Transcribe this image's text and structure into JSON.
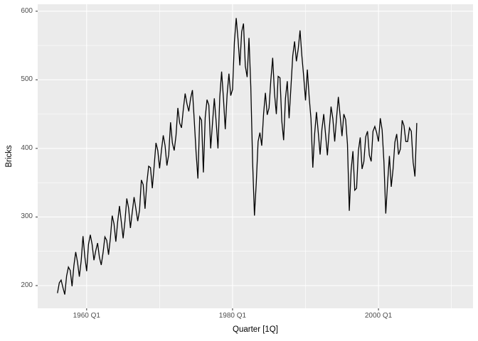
{
  "figure": {
    "x_axis_title": "Quarter [1Q]",
    "y_axis_title": "Bricks",
    "x_ticks": [
      {
        "label": "1960 Q1",
        "year": 1960
      },
      {
        "label": "1980 Q1",
        "year": 1980
      },
      {
        "label": "2000 Q1",
        "year": 2000
      }
    ],
    "x_minor_gridlines": [
      1970,
      1990,
      2010
    ],
    "y_ticks": [
      {
        "label": "200",
        "value": 200
      },
      {
        "label": "300",
        "value": 300
      },
      {
        "label": "400",
        "value": 400
      },
      {
        "label": "500",
        "value": 500
      },
      {
        "label": "600",
        "value": 600
      }
    ],
    "y_minor_gridlines": [
      250,
      350,
      450,
      550
    ],
    "colors": {
      "panel_background": "#EBEBEB",
      "grid_major": "#FFFFFF",
      "grid_minor": "#FFFFFF",
      "line": "#000000",
      "tick_text": "#4D4D4D",
      "axis_title_text": "#000000",
      "tick_mark": "#333333",
      "outer_background": "#FFFFFF"
    }
  },
  "chart_data": {
    "type": "line",
    "title": "",
    "xlabel": "Quarter [1Q]",
    "ylabel": "Bricks",
    "x_start": 1956.0,
    "x_step": 0.25,
    "x_end": 2005.25,
    "x_domain": [
      1953.29,
      2012.96
    ],
    "y_domain": [
      166.85,
      610.15
    ],
    "grid": true,
    "legend_position": "none",
    "series": [
      {
        "name": "Bricks",
        "first_quarter": "1956 Q1",
        "last_quarter": "2005 Q2",
        "values": [
          189,
          204,
          208,
          197,
          187,
          214,
          227,
          222,
          199,
          229,
          249,
          234,
          213,
          236,
          272,
          242,
          221,
          260,
          274,
          260,
          237,
          251,
          262,
          241,
          230,
          248,
          271,
          266,
          245,
          269,
          302,
          290,
          264,
          293,
          316,
          293,
          269,
          294,
          327,
          313,
          284,
          307,
          329,
          312,
          294,
          310,
          354,
          347,
          312,
          350,
          374,
          372,
          342,
          374,
          408,
          397,
          371,
          397,
          419,
          404,
          375,
          391,
          438,
          408,
          397,
          419,
          459,
          437,
          430,
          457,
          480,
          465,
          454,
          473,
          485,
          441,
          394,
          356,
          446,
          441,
          365,
          445,
          471,
          463,
          400,
          437,
          473,
          439,
          400,
          475,
          512,
          473,
          428,
          478,
          509,
          477,
          486,
          555,
          590,
          559,
          521,
          570,
          582,
          520,
          504,
          561,
          490,
          380,
          302,
          350,
          410,
          423,
          404,
          450,
          481,
          449,
          459,
          500,
          532,
          480,
          450,
          505,
          503,
          440,
          412,
          473,
          498,
          444,
          489,
          535,
          556,
          527,
          545,
          572,
          535,
          505,
          470,
          515,
          475,
          443,
          372,
          421,
          453,
          423,
          391,
          428,
          450,
          420,
          390,
          427,
          461,
          443,
          410,
          444,
          475,
          447,
          418,
          450,
          442,
          406,
          309,
          368,
          396,
          339,
          342,
          397,
          416,
          370,
          381,
          417,
          425,
          390,
          381,
          425,
          432,
          423,
          410,
          444,
          427,
          380,
          305,
          350,
          389,
          344,
          370,
          409,
          421,
          391,
          399,
          441,
          433,
          410,
          410,
          430,
          425,
          380,
          359,
          437
        ]
      }
    ]
  }
}
